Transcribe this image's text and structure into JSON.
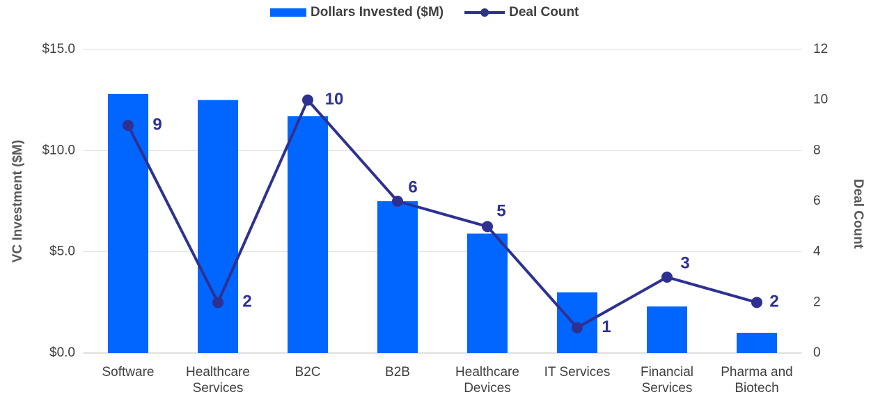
{
  "chart_data": {
    "type": "bar",
    "categories": [
      "Software",
      "Healthcare Services",
      "B2C",
      "B2B",
      "Healthcare Devices",
      "IT Services",
      "Financial Services",
      "Pharma and Biotech"
    ],
    "series": [
      {
        "name": "Dollars Invested ($M)",
        "color": "#0066ff",
        "values": [
          12.8,
          12.5,
          11.7,
          7.5,
          5.9,
          3.0,
          2.3,
          1.0
        ]
      },
      {
        "name": "Deal Count",
        "color": "#2e3192",
        "type": "line",
        "axis": "y2",
        "values": [
          9,
          2,
          10,
          6,
          5,
          1,
          3,
          2
        ]
      }
    ],
    "y_label": "VC Investment ($M)",
    "y2_label": "Deal Count",
    "ylim": [
      0,
      15
    ],
    "yticks": [
      {
        "value": 0,
        "label": "$0.0"
      },
      {
        "value": 5,
        "label": "$5.0"
      },
      {
        "value": 10,
        "label": "$10.0"
      },
      {
        "value": 15,
        "label": "$15.0"
      }
    ],
    "y2lim": [
      0,
      12
    ],
    "y2ticks": [
      0,
      2,
      4,
      6,
      8,
      10,
      12
    ],
    "grid": true,
    "legend": "top"
  }
}
